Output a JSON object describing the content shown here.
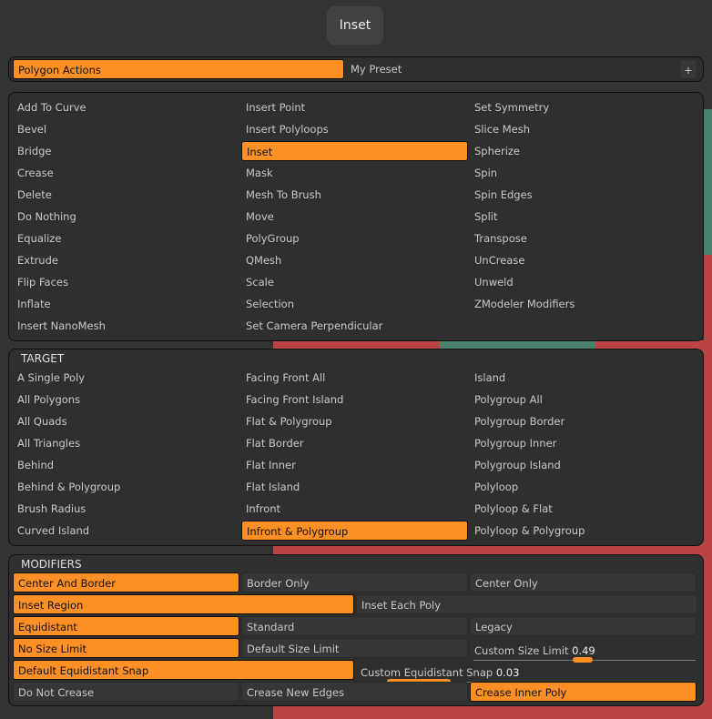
{
  "title": "Inset",
  "preset": {
    "active": "Polygon Actions",
    "other": "My Preset",
    "add": "+"
  },
  "actions": [
    [
      "Add To Curve",
      "Insert Point",
      "Set Symmetry"
    ],
    [
      "Bevel",
      "Insert Polyloops",
      "Slice Mesh"
    ],
    [
      "Bridge",
      "Inset",
      "Spherize"
    ],
    [
      "Crease",
      "Mask",
      "Spin"
    ],
    [
      "Delete",
      "Mesh To Brush",
      "Spin Edges"
    ],
    [
      "Do Nothing",
      "Move",
      "Split"
    ],
    [
      "Equalize",
      "PolyGroup",
      "Transpose"
    ],
    [
      "Extrude",
      "QMesh",
      "UnCrease"
    ],
    [
      "Flip Faces",
      "Scale",
      "Unweld"
    ],
    [
      "Inflate",
      "Selection",
      "ZModeler Modifiers"
    ],
    [
      "Insert NanoMesh",
      "Set Camera Perpendicular",
      ""
    ]
  ],
  "actions_selected": "Inset",
  "target": {
    "header": "TARGET",
    "items": [
      [
        "A Single Poly",
        "Facing Front All",
        "Island"
      ],
      [
        "All Polygons",
        "Facing Front Island",
        "Polygroup All"
      ],
      [
        "All Quads",
        "Flat & Polygroup",
        "Polygroup Border"
      ],
      [
        "All Triangles",
        "Flat Border",
        "Polygroup Inner"
      ],
      [
        "Behind",
        "Flat Inner",
        "Polygroup Island"
      ],
      [
        "Behind & Polygroup",
        "Flat Island",
        "Polyloop"
      ],
      [
        "Brush Radius",
        "Infront",
        "Polyloop & Flat"
      ],
      [
        "Curved Island",
        "Infront & Polygroup",
        "Polyloop & Polygroup"
      ]
    ],
    "selected": "Infront & Polygroup"
  },
  "modifiers": {
    "header": "MODIFIERS",
    "r1": [
      "Center And Border",
      "Border Only",
      "Center Only"
    ],
    "r2": [
      "Inset Region",
      "Inset Each Poly"
    ],
    "r3": [
      "Equidistant",
      "Standard",
      "Legacy"
    ],
    "r4": [
      "No Size Limit",
      "Default Size Limit"
    ],
    "size_limit": {
      "label": "Custom Size Limit",
      "value": "0.49",
      "fraction": 0.49
    },
    "r5": [
      "Default Equidistant Snap"
    ],
    "snap": {
      "label": "Custom Equidistant Snap",
      "value": "0.03",
      "fraction": 0.03
    },
    "r6": [
      "Do Not Crease",
      "Crease New Edges",
      "Crease Inner Poly"
    ]
  },
  "colors": {
    "accent": "#fd8f27",
    "panel": "#2f2f2f"
  }
}
